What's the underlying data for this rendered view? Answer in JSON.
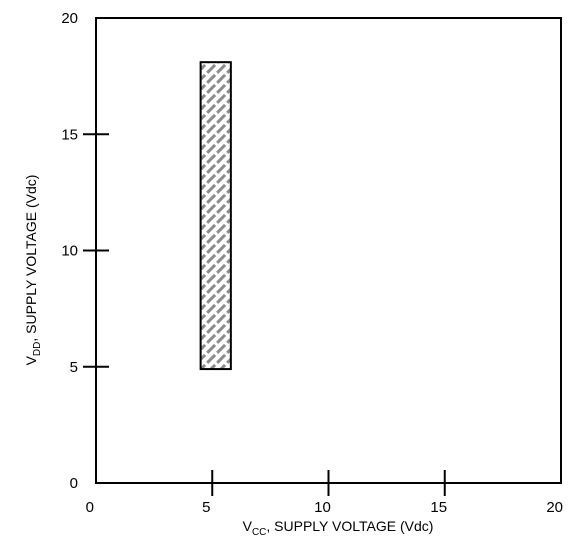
{
  "chart_data": {
    "type": "area",
    "x_axis": {
      "range": [
        0,
        20
      ],
      "ticks": [
        "0",
        "5",
        "10",
        "15",
        "20"
      ],
      "label_prefix": "V",
      "label_subscript": "CC",
      "label_suffix": ", SUPPLY VOLTAGE (Vdc)"
    },
    "y_axis": {
      "range": [
        0,
        20
      ],
      "ticks": [
        "0",
        "5",
        "10",
        "15",
        "20"
      ],
      "label_prefix": "V",
      "label_subscript": "DD",
      "label_suffix": ", SUPPLY VOLTAGE (Vdc)"
    },
    "grid": false,
    "regions": [
      {
        "x_min": 4.5,
        "x_max": 5.8,
        "y_min": 4.9,
        "y_max": 18.1,
        "fill": "hatched",
        "hatch_color": "#8c8c8c"
      }
    ]
  }
}
